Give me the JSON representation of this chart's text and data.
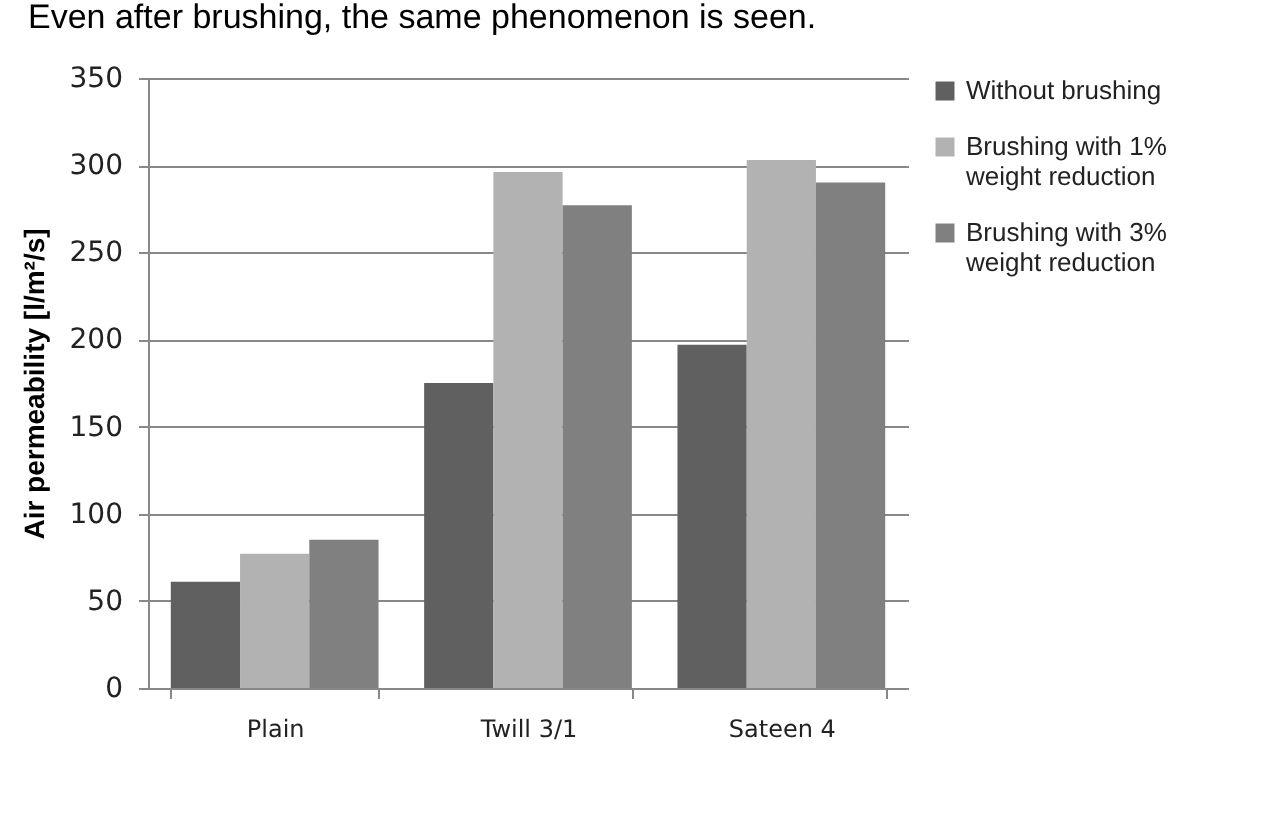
{
  "chart_data": {
    "type": "bar",
    "title": "Even after brushing, the same phenomenon is seen.",
    "ylabel": "Air permeability [l/m²/s]",
    "categories": [
      "Plain",
      "Twill 3/1",
      "Sateen 4"
    ],
    "series": [
      {
        "name": "Without brushing",
        "color": "#606060",
        "values": [
          61,
          175,
          197
        ]
      },
      {
        "name": "Brushing with 1% weight reduction",
        "color": "#b2b2b2",
        "values": [
          77,
          296,
          303
        ]
      },
      {
        "name": "Brushing with 3% weight reduction",
        "color": "#808080",
        "values": [
          85,
          277,
          290
        ]
      }
    ],
    "ylim": [
      0,
      350
    ],
    "yticks": [
      0,
      50,
      100,
      150,
      200,
      250,
      300,
      350
    ],
    "grid": "y",
    "legend": "right"
  }
}
